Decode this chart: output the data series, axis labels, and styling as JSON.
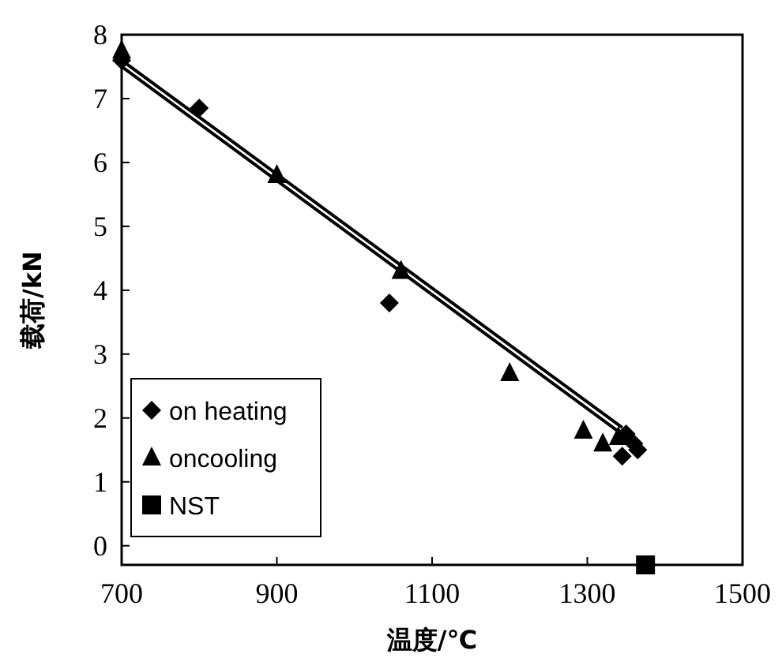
{
  "chart_data": {
    "type": "scatter",
    "xlabel": "温度/℃",
    "ylabel": "载荷/kN",
    "xlim": [
      700,
      1500
    ],
    "ylim": [
      -0.3,
      8
    ],
    "xticks": [
      700,
      900,
      1100,
      1300,
      1500
    ],
    "yticks": [
      0,
      1,
      2,
      3,
      4,
      5,
      6,
      7,
      8
    ],
    "grid": false,
    "legend": "bottom left",
    "series": [
      {
        "name": "on heating",
        "marker": "diamond",
        "color": "#000000",
        "x": [
          700,
          800,
          1045,
          1350,
          1365,
          1345,
          1360
        ],
        "values": [
          7.6,
          6.85,
          3.8,
          1.75,
          1.5,
          1.4,
          1.6
        ]
      },
      {
        "name": "oncooling",
        "marker": "triangle",
        "color": "#000000",
        "x": [
          700,
          900,
          1060,
          1200,
          1295,
          1320,
          1340
        ],
        "values": [
          7.75,
          5.8,
          4.3,
          2.7,
          1.8,
          1.6,
          1.7
        ]
      },
      {
        "name": "NST",
        "marker": "square",
        "color": "#000000",
        "x": [
          1375
        ],
        "values": [
          -0.3
        ]
      },
      {
        "type": "line",
        "color": "#000000",
        "x": [
          700,
          1350
        ],
        "values": [
          7.5,
          1.7
        ]
      },
      {
        "type": "line",
        "color": "#000000",
        "x": [
          700,
          1345
        ],
        "values": [
          7.6,
          1.85
        ]
      }
    ]
  }
}
